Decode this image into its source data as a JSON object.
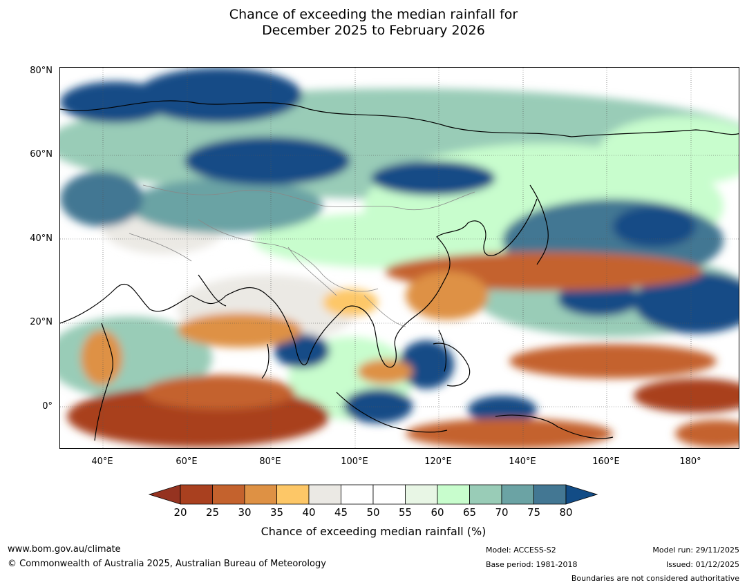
{
  "title": {
    "line1": "Chance of exceeding the median rainfall for",
    "line2": "December 2025 to February 2026"
  },
  "map": {
    "lat_labels": [
      "80°N",
      "60°N",
      "40°N",
      "20°N",
      "0°"
    ],
    "lon_labels": [
      "40°E",
      "60°E",
      "80°E",
      "100°E",
      "120°E",
      "140°E",
      "160°E",
      "180°"
    ]
  },
  "colorbar": {
    "ticks": [
      "20",
      "25",
      "30",
      "35",
      "40",
      "45",
      "50",
      "55",
      "60",
      "65",
      "70",
      "75",
      "80"
    ],
    "colors": [
      "#a9401f",
      "#c4622d",
      "#de9144",
      "#fdc767",
      "#ebe9e4",
      "#ffffff",
      "#ffffff",
      "#e8f6e5",
      "#c8fdcd",
      "#99ccb7",
      "#6ba3a4",
      "#437793"
    ],
    "low_extend_color": "#953320",
    "high_extend_color": "#124c86",
    "label": "Chance of exceeding median rainfall (%)"
  },
  "footer": {
    "website": "www.bom.gov.au/climate",
    "copyright": "© Commonwealth of Australia 2025, Australian Bureau of Meteorology",
    "model": "Model: ACCESS-S2",
    "base_period": "Base period: 1981-2018",
    "model_run": "Model run: 29/11/2025",
    "issued": "Issued: 01/12/2025",
    "disclaimer": "Boundaries are not considered authoritative"
  }
}
